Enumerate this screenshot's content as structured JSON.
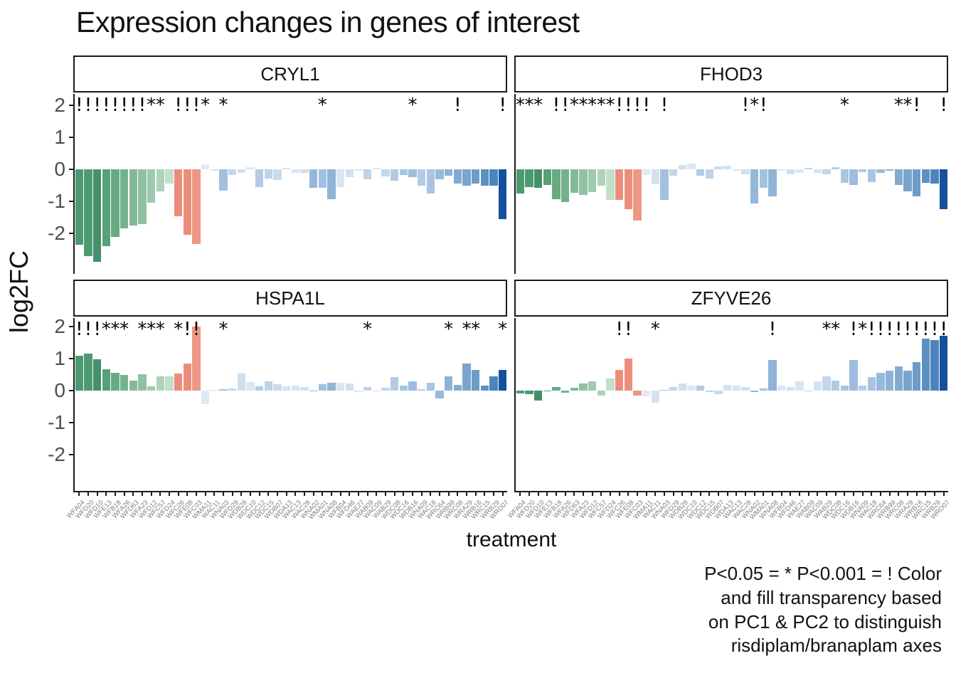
{
  "title": "Expression changes in genes of interest",
  "y_axis": {
    "label": "log2FC",
    "ticks": [
      2,
      1,
      0,
      -1,
      -2
    ]
  },
  "x_axis": {
    "label": "treatment",
    "treatments": [
      "WFA04",
      "WFD20",
      "WFD10",
      "WFE13",
      "WFB18",
      "WFA26",
      "WFD63",
      "WFA23",
      "WFD12",
      "WFC57",
      "WFD24",
      "WFC26",
      "WFE08",
      "WFC03",
      "WMA11",
      "WAC11",
      "WNA03",
      "WFD29",
      "WDB28",
      "WDC10",
      "WDC12",
      "WDC15",
      "WDB07",
      "WDA13",
      "WAC13",
      "WAC28",
      "WNA02",
      "WMA01",
      "WNA08",
      "WFB04",
      "WFD46",
      "WAE27",
      "WAB09",
      "WAC09",
      "WAB29",
      "WDC08",
      "WDC16",
      "WDB16",
      "WNA09",
      "WAC18",
      "WRC64",
      "WRB99",
      "WRC08",
      "WRA29",
      "WRB16",
      "WRC15",
      "WRB29",
      "WRD07"
    ]
  },
  "caption": {
    "lines": [
      "P<0.05 = * P<0.001 = ! Color",
      "and fill transparency based",
      "on PC1 & PC2 to distinguish",
      "risdiplam/branaplam axes"
    ]
  },
  "chart_data": {
    "type": "bar",
    "title": "Expression changes in genes of interest",
    "xlabel": "treatment",
    "ylabel": "log2FC",
    "ylim": [
      -3.2,
      2.35
    ],
    "grid": false,
    "significance_legend": "P<0.05 = * P<0.001 = !",
    "categories": [
      "WFA04",
      "WFD20",
      "WFD10",
      "WFE13",
      "WFB18",
      "WFA26",
      "WFD63",
      "WFA23",
      "WFD12",
      "WFC57",
      "WFD24",
      "WFC26",
      "WFE08",
      "WFC03",
      "WMA11",
      "WAC11",
      "WNA03",
      "WFD29",
      "WDB28",
      "WDC10",
      "WDC12",
      "WDC15",
      "WDB07",
      "WDA13",
      "WAC13",
      "WAC28",
      "WNA02",
      "WMA01",
      "WNA08",
      "WFB04",
      "WFD46",
      "WAE27",
      "WAB09",
      "WAC09",
      "WAB29",
      "WDC08",
      "WDC16",
      "WDB16",
      "WNA09",
      "WAC18",
      "WRC64",
      "WRB99",
      "WRC08",
      "WRA29",
      "WRB16",
      "WRC15",
      "WRB29",
      "WRD07"
    ],
    "bar_colors": [
      "#4d9970",
      "#4d9970",
      "#45906a",
      "#58a077",
      "#68aa83",
      "#74b28d",
      "#82ba98",
      "#8fc1a2",
      "#9ecaae",
      "#aed3ba",
      "#c2dfc9",
      "#ec8d7b",
      "#ec8d7b",
      "#ee9786",
      "#dfeaf5",
      "#d4e2f0",
      "#a3c1df",
      "#c3d6ea",
      "#cedff0",
      "#d9e7f4",
      "#b3cce6",
      "#bdd3e9",
      "#c8daed",
      "#d3e2f1",
      "#d6e5f3",
      "#cde0f0",
      "#94b8da",
      "#a3c1df",
      "#8fb4d8",
      "#d8e6f4",
      "#cfe0f1",
      "#d8e6f4",
      "#bdd3e9",
      "#d3e3f2",
      "#c3d7eb",
      "#b3cce6",
      "#a8c5e1",
      "#9cbddd",
      "#b3cce6",
      "#a8c5e1",
      "#97bada",
      "#8db2d6",
      "#82abd2",
      "#78a4ce",
      "#6d9cc9",
      "#5d90c2",
      "#4c84bc",
      "#15509e"
    ],
    "facets": [
      {
        "name": "CRYL1",
        "values": [
          -2.35,
          -2.72,
          -2.88,
          -2.4,
          -2.12,
          -1.85,
          -1.76,
          -1.72,
          -1.04,
          -0.69,
          -0.44,
          -1.47,
          -2.04,
          -2.34,
          0.16,
          -0.05,
          -0.67,
          -0.17,
          -0.12,
          0.07,
          -0.56,
          -0.28,
          -0.34,
          0.05,
          -0.12,
          -0.1,
          -0.58,
          -0.57,
          -0.93,
          -0.55,
          -0.25,
          -0.05,
          -0.3,
          0.05,
          -0.22,
          -0.35,
          -0.18,
          -0.25,
          -0.5,
          -0.75,
          -0.3,
          -0.2,
          -0.45,
          -0.52,
          -0.45,
          -0.5,
          -0.52,
          -1.55
        ],
        "sig": [
          "!",
          "!",
          "!",
          "!",
          "!",
          "!",
          "!",
          "!",
          "*",
          "*",
          "",
          "!",
          "!",
          "!",
          "*",
          "",
          "*",
          "",
          "",
          "",
          "",
          "",
          "",
          "",
          "",
          "",
          "",
          "*",
          "",
          "",
          "",
          "",
          "",
          "",
          "",
          "",
          "",
          "*",
          "",
          "",
          "",
          "",
          "!",
          "",
          "",
          "",
          "",
          "!"
        ]
      },
      {
        "name": "FHOD3",
        "values": [
          -0.76,
          -0.56,
          -0.58,
          -0.49,
          -0.93,
          -1.02,
          -0.73,
          -0.8,
          -0.71,
          -0.5,
          -0.95,
          -0.95,
          -1.24,
          -1.6,
          -0.17,
          -0.47,
          -0.96,
          -0.21,
          0.13,
          0.18,
          -0.2,
          -0.28,
          0.09,
          0.12,
          -0.05,
          -0.15,
          -1.06,
          -0.58,
          -0.84,
          -0.04,
          -0.15,
          -0.1,
          0.05,
          -0.12,
          -0.15,
          0.06,
          -0.42,
          -0.48,
          -0.08,
          -0.4,
          -0.1,
          -0.05,
          -0.48,
          -0.68,
          -0.85,
          -0.42,
          -0.45,
          -1.25
        ],
        "sig": [
          "*",
          "*",
          "*",
          "",
          "!",
          "!",
          "*",
          "*",
          "*",
          "*",
          "*",
          "!",
          "!",
          "!",
          "!",
          "",
          "!",
          "",
          "",
          "",
          "",
          "",
          "",
          "",
          "",
          "!",
          "*",
          "!",
          "",
          "",
          "",
          "",
          "",
          "",
          "",
          "",
          "*",
          "",
          "",
          "",
          "",
          "",
          "*",
          "*",
          "!",
          "",
          "",
          "!"
        ]
      },
      {
        "name": "HSPA1L",
        "values": [
          1.09,
          1.16,
          0.97,
          0.67,
          0.56,
          0.48,
          0.31,
          0.51,
          0.14,
          0.44,
          0.44,
          0.53,
          0.84,
          2.0,
          -0.43,
          0.02,
          0.04,
          0.07,
          0.53,
          0.27,
          0.13,
          0.3,
          0.19,
          0.14,
          0.15,
          0.12,
          -0.03,
          0.2,
          0.25,
          0.25,
          0.22,
          -0.04,
          0.12,
          0.0,
          0.1,
          0.42,
          0.15,
          0.28,
          0.05,
          0.25,
          -0.25,
          0.45,
          0.18,
          0.85,
          0.65,
          0.15,
          0.45,
          0.65
        ],
        "sig": [
          "!",
          "!",
          "!",
          "*",
          "*",
          "*",
          "",
          "*",
          "*",
          "*",
          "",
          "*",
          "!",
          "!",
          "",
          "",
          "*",
          "",
          "",
          "",
          "",
          "",
          "",
          "",
          "",
          "",
          "",
          "",
          "",
          "",
          "",
          "",
          "*",
          "",
          "",
          "",
          "",
          "",
          "",
          "",
          "",
          "*",
          "",
          "*",
          "*",
          "",
          "",
          "*"
        ]
      },
      {
        "name": "ZFYVE26",
        "values": [
          -0.08,
          -0.1,
          -0.3,
          -0.03,
          0.12,
          -0.07,
          0.1,
          0.22,
          0.3,
          -0.15,
          0.38,
          0.65,
          1.0,
          -0.15,
          -0.18,
          -0.38,
          0.02,
          0.12,
          0.22,
          0.15,
          0.15,
          -0.05,
          -0.1,
          0.18,
          0.15,
          0.12,
          -0.04,
          0.06,
          0.95,
          0.15,
          0.12,
          0.3,
          0.0,
          0.28,
          0.45,
          0.32,
          0.15,
          0.95,
          0.15,
          0.42,
          0.55,
          0.62,
          0.75,
          0.62,
          0.88,
          1.62,
          1.58,
          1.72
        ],
        "sig": [
          "",
          "",
          "",
          "",
          "",
          "",
          "",
          "",
          "",
          "",
          "",
          "!",
          "!",
          "",
          "",
          "*",
          "",
          "",
          "",
          "",
          "",
          "",
          "",
          "",
          "",
          "",
          "",
          "",
          "!",
          "",
          "",
          "",
          "",
          "",
          "*",
          "*",
          "",
          "!",
          "*",
          "!",
          "!",
          "!",
          "!",
          "!",
          "!",
          "!",
          "!",
          "!"
        ]
      }
    ]
  }
}
